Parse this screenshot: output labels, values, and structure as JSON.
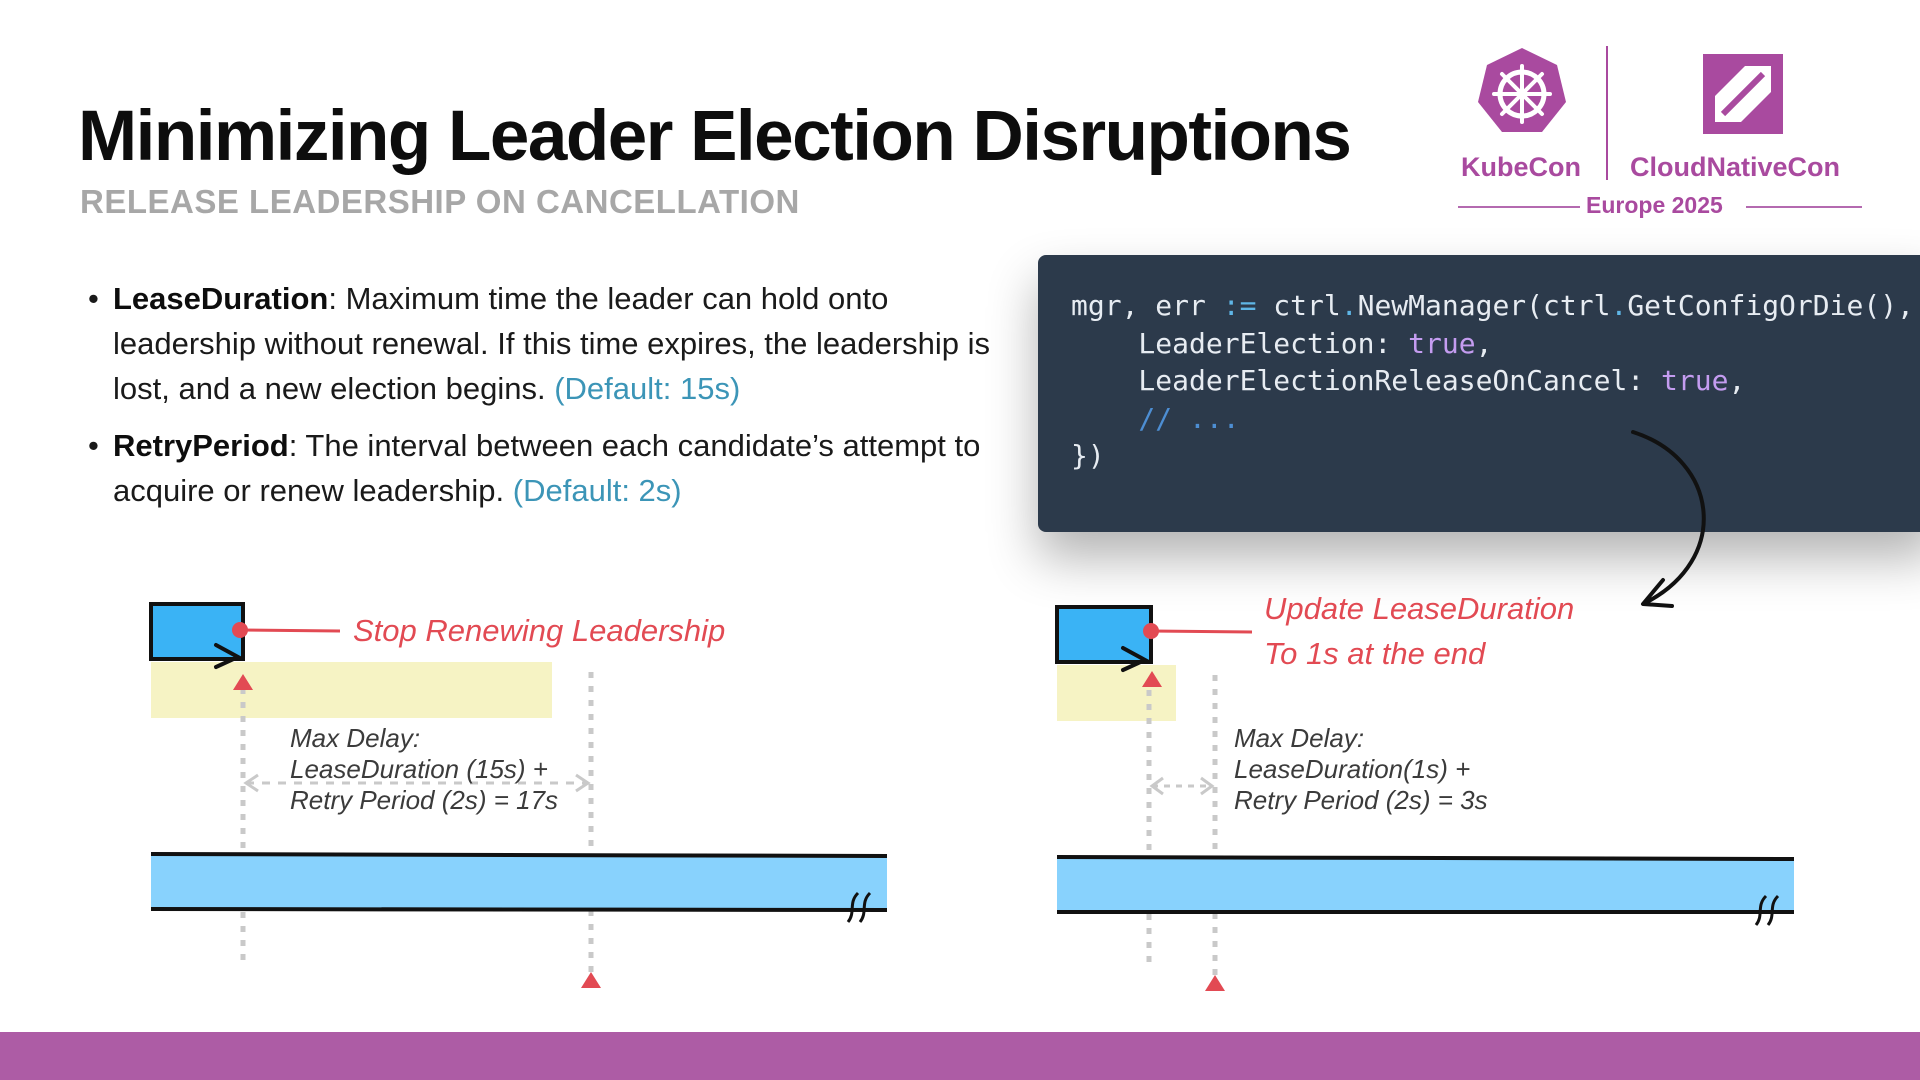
{
  "slide": {
    "title": "Minimizing Leader Election Disruptions",
    "subtitle": "RELEASE LEADERSHIP ON CANCELLATION"
  },
  "logos": {
    "kubecon": "KubeCon",
    "cloudnativecon": "CloudNativeCon",
    "event": "Europe 2025",
    "brand_color": "#a94a9f",
    "kubecon_icon": "kubernetes-helm-heptagon-icon",
    "cncf_icon": "cncf-square-icon"
  },
  "bullets": [
    {
      "term": "LeaseDuration",
      "text": ": Maximum time the leader can hold onto leadership without renewal. If this time expires, the leadership is lost, and a new election begins. ",
      "default": "(Default: 15s)"
    },
    {
      "term": "RetryPeriod",
      "text": ": The interval between each candidate’s attempt to acquire or renew leadership. ",
      "default": "(Default: 2s)"
    }
  ],
  "code": {
    "line1_a": "mgr, err ",
    "line1_op": ":=",
    "line1_b": " ctrl",
    "line1_dot1": ".",
    "line1_c": "NewManager(ctrl",
    "line1_dot2": ".",
    "line1_d": "GetConfigOrDie(),",
    "line2_key": "    LeaderElection: ",
    "line2_val": "true",
    "line2_end": ",",
    "line3_key": "    LeaderElectionReleaseOnCancel: ",
    "line3_val": "true",
    "line3_end": ",",
    "line4_comment": "    // ...",
    "line5": "})"
  },
  "diagram_left": {
    "annotation": "Stop Renewing Leadership",
    "delay_line1": "Max Delay:",
    "delay_line2": "LeaseDuration (15s) +",
    "delay_line3": "Retry Period (2s) = 17s"
  },
  "diagram_right": {
    "annotation_line1": "Update LeaseDuration",
    "annotation_line2": "To 1s at the end",
    "delay_line1": "Max Delay:",
    "delay_line2": "LeaseDuration(1s) +",
    "delay_line3": "Retry Period (2s) = 3s"
  },
  "colors": {
    "accent_red": "#e24a53",
    "lease_blue": "#88d2fd",
    "leader_blue": "#3ab3f5",
    "lease_yellow": "#f6f3c4",
    "code_bg": "#2c3a4b",
    "footer": "#ad5ca5",
    "default_blue": "#3c95b7"
  }
}
